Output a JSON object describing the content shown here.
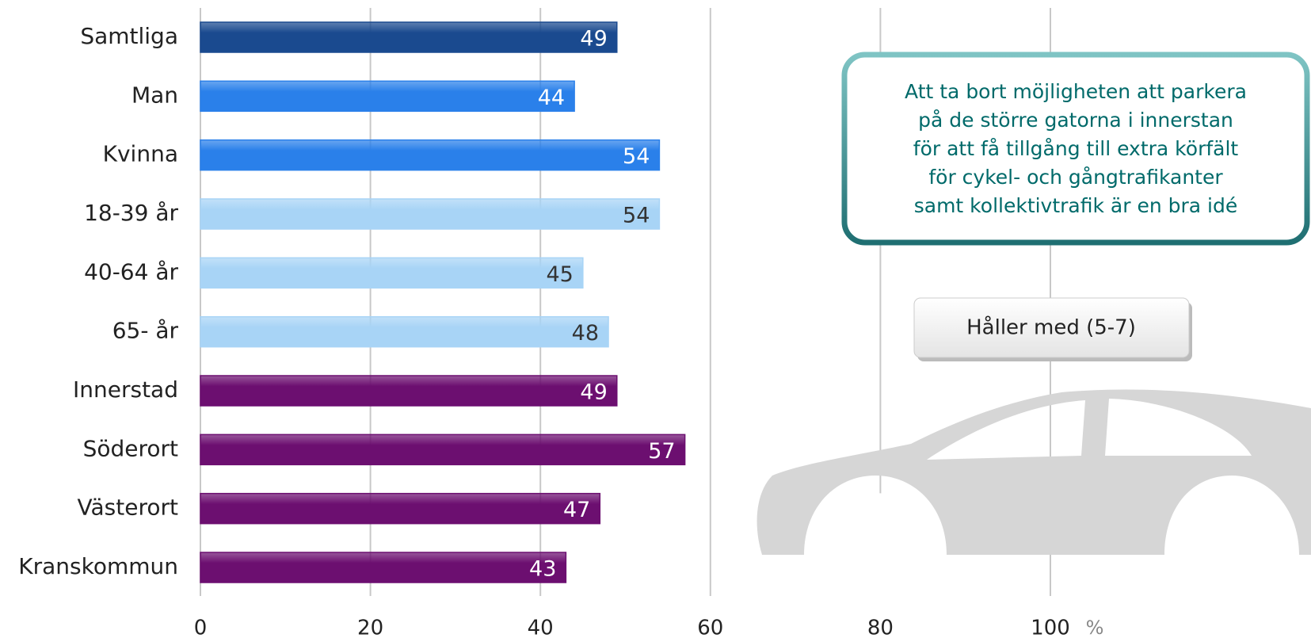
{
  "chart_data": {
    "type": "bar",
    "orientation": "horizontal",
    "categories": [
      "Samtliga",
      "Man",
      "Kvinna",
      "18-39 år",
      "40-64 år",
      "65- år",
      "Innerstad",
      "Söderort",
      "Västerort",
      "Kranskommun"
    ],
    "series": [
      {
        "name": "Håller med (5-7)",
        "values": [
          49,
          44,
          54,
          54,
          45,
          48,
          49,
          57,
          47,
          43
        ],
        "colors": [
          "#1a4a8f",
          "#2a80ea",
          "#2a80ea",
          "#a8d4f6",
          "#a8d4f6",
          "#a8d4f6",
          "#6c0f70",
          "#6c0f70",
          "#6c0f70",
          "#6c0f70"
        ]
      }
    ],
    "xlim": [
      0,
      100
    ],
    "xticks": [
      0,
      20,
      40,
      60,
      80,
      100
    ],
    "xlabel": "%",
    "grid": true,
    "annotation": [
      "Att ta bort möjligheten att parkera",
      "på de större gatorna i innerstan",
      "för att få tillgång till extra körfält",
      "för cykel- och gångtrafikanter",
      "samt kollektivtrafik är en bra idé"
    ]
  }
}
